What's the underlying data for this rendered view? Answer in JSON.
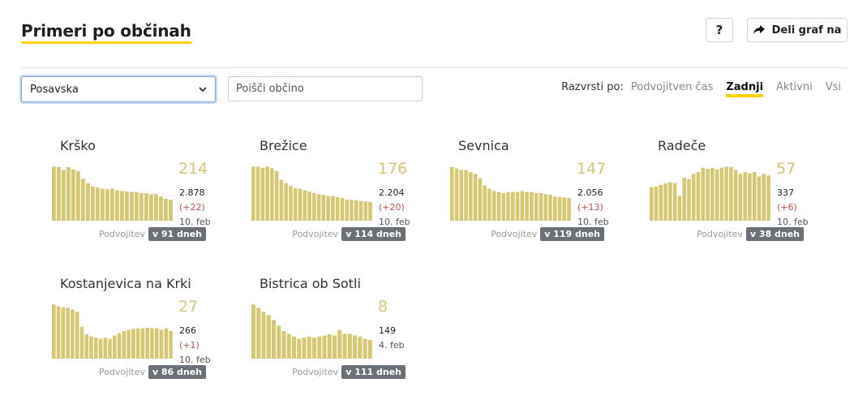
{
  "header": {
    "title": "Primeri po občinah",
    "help_label": "?",
    "share_label": "Deli graf na"
  },
  "filters": {
    "region_selected": "Posavska",
    "search_placeholder": "Poišči občino",
    "sort_label": "Razvrsti po:",
    "sort_options": [
      "Podvojitven čas",
      "Zadnji",
      "Aktivni",
      "Vsi"
    ],
    "sort_active": "Zadnji"
  },
  "colors": {
    "bar": "#d6c873",
    "accent": "#ffd400",
    "badge": "#6b7176",
    "delta": "#c0504d"
  },
  "cards": [
    {
      "name": "Krško",
      "active": "214",
      "total": "2.878",
      "delta": "(+22)",
      "date": "10. feb",
      "doubling_label": "Podvojitev",
      "doubling_badge": "v 91 dneh",
      "bars": [
        0.98,
        0.97,
        0.92,
        0.97,
        0.93,
        0.9,
        0.76,
        0.68,
        0.62,
        0.6,
        0.58,
        0.57,
        0.58,
        0.55,
        0.54,
        0.53,
        0.52,
        0.52,
        0.5,
        0.5,
        0.48,
        0.48,
        0.44,
        0.4,
        0.38
      ]
    },
    {
      "name": "Brežice",
      "active": "176",
      "total": "2.204",
      "delta": "(+20)",
      "date": "10. feb",
      "doubling_label": "Podvojitev",
      "doubling_badge": "v 114 dneh",
      "bars": [
        0.98,
        0.98,
        0.96,
        0.98,
        0.95,
        0.9,
        0.74,
        0.68,
        0.63,
        0.59,
        0.58,
        0.55,
        0.53,
        0.5,
        0.48,
        0.47,
        0.45,
        0.45,
        0.43,
        0.41,
        0.38,
        0.38,
        0.37,
        0.36,
        0.35,
        0.34
      ]
    },
    {
      "name": "Sevnica",
      "active": "147",
      "total": "2.056",
      "delta": "(+13)",
      "date": "10. feb",
      "doubling_label": "Podvojitev",
      "doubling_badge": "v 119 dneh",
      "bars": [
        0.97,
        0.95,
        0.92,
        0.92,
        0.88,
        0.85,
        0.77,
        0.64,
        0.58,
        0.54,
        0.52,
        0.5,
        0.52,
        0.52,
        0.52,
        0.54,
        0.52,
        0.52,
        0.5,
        0.5,
        0.48,
        0.47,
        0.44,
        0.43,
        0.42,
        0.41
      ]
    },
    {
      "name": "Radeče",
      "active": "57",
      "total": "337",
      "delta": "(+6)",
      "date": "10. feb",
      "doubling_label": "Podvojitev",
      "doubling_badge": "v 38 dneh",
      "bars": [
        0.61,
        0.62,
        0.65,
        0.68,
        0.7,
        0.68,
        0.45,
        0.78,
        0.75,
        0.85,
        0.88,
        0.96,
        0.94,
        0.96,
        0.93,
        0.96,
        0.98,
        0.97,
        0.92,
        0.85,
        0.88,
        0.86,
        0.88,
        0.8,
        0.85,
        0.82
      ]
    },
    {
      "name": "Kostanjevica na Krki",
      "active": "27",
      "total": "266",
      "delta": "(+1)",
      "date": "10. feb",
      "doubling_label": "Podvojitev",
      "doubling_badge": "v 86 dneh",
      "bars": [
        0.98,
        0.95,
        0.93,
        0.92,
        0.89,
        0.85,
        0.58,
        0.44,
        0.4,
        0.38,
        0.36,
        0.38,
        0.36,
        0.42,
        0.46,
        0.5,
        0.52,
        0.54,
        0.55,
        0.55,
        0.56,
        0.55,
        0.55,
        0.52,
        0.55,
        0.5
      ]
    },
    {
      "name": "Bistrica ob Sotli",
      "active": "8",
      "total": "149",
      "delta": "",
      "date": "4. feb",
      "doubling_label": "Podvojitev",
      "doubling_badge": "v 111 dneh",
      "bars": [
        0.98,
        0.92,
        0.85,
        0.79,
        0.7,
        0.6,
        0.5,
        0.45,
        0.4,
        0.36,
        0.38,
        0.4,
        0.38,
        0.4,
        0.42,
        0.44,
        0.42,
        0.52,
        0.45,
        0.45,
        0.42,
        0.4,
        0.36,
        0.34
      ]
    }
  ]
}
